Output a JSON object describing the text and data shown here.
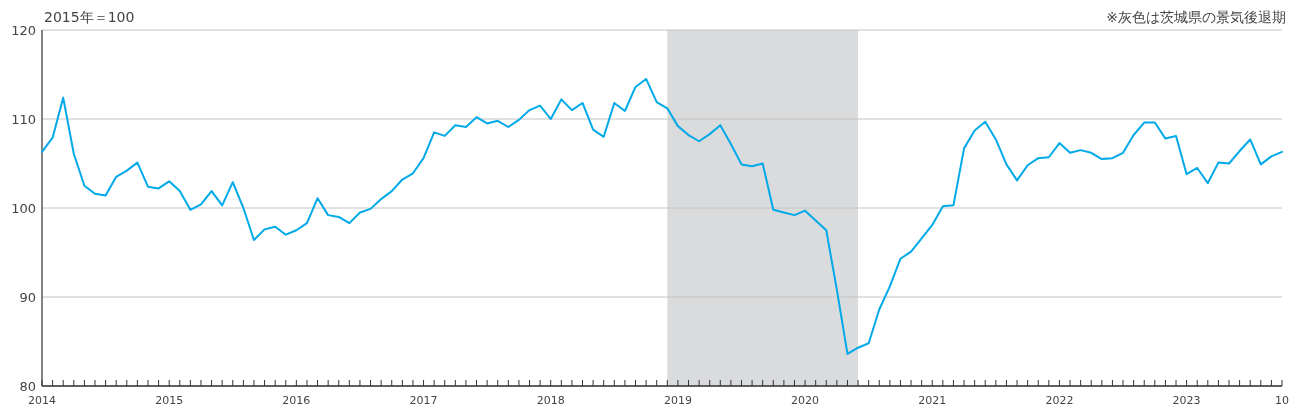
{
  "chart_data": {
    "type": "line",
    "ylabel": "2015年＝100",
    "annotations": [
      "※灰色は茨城県の景気後退期"
    ],
    "x": [
      "2014-01",
      "2014-02",
      "2014-03",
      "2014-04",
      "2014-05",
      "2014-06",
      "2014-07",
      "2014-08",
      "2014-09",
      "2014-10",
      "2014-11",
      "2014-12",
      "2015-01",
      "2015-02",
      "2015-03",
      "2015-04",
      "2015-05",
      "2015-06",
      "2015-07",
      "2015-08",
      "2015-09",
      "2015-10",
      "2015-11",
      "2015-12",
      "2016-01",
      "2016-02",
      "2016-03",
      "2016-04",
      "2016-05",
      "2016-06",
      "2016-07",
      "2016-08",
      "2016-09",
      "2016-10",
      "2016-11",
      "2016-12",
      "2017-01",
      "2017-02",
      "2017-03",
      "2017-04",
      "2017-05",
      "2017-06",
      "2017-07",
      "2017-08",
      "2017-09",
      "2017-10",
      "2017-11",
      "2017-12",
      "2018-01",
      "2018-02",
      "2018-03",
      "2018-04",
      "2018-05",
      "2018-06",
      "2018-07",
      "2018-08",
      "2018-09",
      "2018-10",
      "2018-11",
      "2018-12",
      "2019-01",
      "2019-02",
      "2019-03",
      "2019-04",
      "2019-05",
      "2019-06",
      "2019-07",
      "2019-08",
      "2019-09",
      "2019-10",
      "2019-11",
      "2019-12",
      "2020-01",
      "2020-02",
      "2020-03",
      "2020-04",
      "2020-05",
      "2020-06",
      "2020-07",
      "2020-08",
      "2020-09",
      "2020-10",
      "2020-11",
      "2020-12",
      "2021-01",
      "2021-02",
      "2021-03",
      "2021-04",
      "2021-05",
      "2021-06",
      "2021-07",
      "2021-08",
      "2021-09",
      "2021-10",
      "2021-11",
      "2021-12",
      "2022-01",
      "2022-02",
      "2022-03",
      "2022-04",
      "2022-05",
      "2022-06",
      "2022-07",
      "2022-08",
      "2022-09",
      "2022-10",
      "2022-11",
      "2022-12",
      "2023-01",
      "2023-02",
      "2023-03",
      "2023-04",
      "2023-05",
      "2023-06",
      "2023-07",
      "2023-08",
      "2023-09",
      "2023-10"
    ],
    "series": [
      {
        "color": "#00a9e8",
        "values": [
          106.3,
          107.9,
          112.4,
          106.1,
          102.5,
          101.6,
          101.4,
          103.5,
          104.2,
          105.1,
          102.4,
          102.2,
          103.0,
          101.9,
          99.8,
          100.4,
          101.9,
          100.3,
          102.9,
          100.0,
          96.4,
          97.6,
          97.9,
          97.0,
          97.5,
          98.3,
          101.1,
          99.2,
          99.0,
          98.3,
          99.5,
          99.9,
          101.0,
          101.9,
          103.2,
          103.9,
          105.6,
          108.5,
          108.1,
          109.3,
          109.1,
          110.2,
          109.5,
          109.8,
          109.1,
          109.9,
          111.0,
          111.5,
          110.0,
          112.2,
          111.0,
          111.8,
          108.8,
          108.0,
          111.8,
          110.9,
          113.6,
          114.5,
          111.9,
          111.2,
          109.2,
          108.2,
          107.5,
          108.3,
          109.3,
          107.2,
          104.9,
          104.7,
          105.0,
          99.8,
          99.5,
          99.2,
          99.7,
          98.6,
          97.5,
          90.8,
          83.6,
          84.3,
          84.8,
          88.6,
          91.2,
          94.3,
          95.1,
          96.6,
          98.1,
          100.2,
          100.3,
          106.7,
          108.7,
          109.7,
          107.7,
          104.9,
          103.1,
          104.8,
          105.6,
          105.7,
          107.3,
          106.2,
          106.5,
          106.2,
          105.5,
          105.6,
          106.2,
          108.2,
          109.6,
          109.6,
          107.8,
          108.1,
          103.8,
          104.5,
          102.8,
          105.1,
          105.0,
          106.4,
          107.7,
          104.9,
          105.8,
          106.3
        ]
      }
    ],
    "xlim": [
      "2014-01",
      "2023-10"
    ],
    "ylim": [
      80,
      120
    ],
    "yticks": [
      80,
      90,
      100,
      110,
      120
    ],
    "xticks": [
      {
        "value": "2014-01",
        "label": "2014"
      },
      {
        "value": "2014-02",
        "label": null
      },
      {
        "value": "2014-03",
        "label": null
      },
      {
        "value": "2014-04",
        "label": null
      },
      {
        "value": "2014-05",
        "label": null
      },
      {
        "value": "2014-06",
        "label": null
      },
      {
        "value": "2014-07",
        "label": null
      },
      {
        "value": "2014-08",
        "label": null
      },
      {
        "value": "2014-09",
        "label": null
      },
      {
        "value": "2014-10",
        "label": null
      },
      {
        "value": "2014-11",
        "label": null
      },
      {
        "value": "2014-12",
        "label": null
      },
      {
        "value": "2015-01",
        "label": "2015"
      },
      {
        "value": "2015-02",
        "label": null
      },
      {
        "value": "2015-03",
        "label": null
      },
      {
        "value": "2015-04",
        "label": null
      },
      {
        "value": "2015-05",
        "label": null
      },
      {
        "value": "2015-06",
        "label": null
      },
      {
        "value": "2015-07",
        "label": null
      },
      {
        "value": "2015-08",
        "label": null
      },
      {
        "value": "2015-09",
        "label": null
      },
      {
        "value": "2015-10",
        "label": null
      },
      {
        "value": "2015-11",
        "label": null
      },
      {
        "value": "2015-12",
        "label": null
      },
      {
        "value": "2016-01",
        "label": "2016"
      },
      {
        "value": "2016-02",
        "label": null
      },
      {
        "value": "2016-03",
        "label": null
      },
      {
        "value": "2016-04",
        "label": null
      },
      {
        "value": "2016-05",
        "label": null
      },
      {
        "value": "2016-06",
        "label": null
      },
      {
        "value": "2016-07",
        "label": null
      },
      {
        "value": "2016-08",
        "label": null
      },
      {
        "value": "2016-09",
        "label": null
      },
      {
        "value": "2016-10",
        "label": null
      },
      {
        "value": "2016-11",
        "label": null
      },
      {
        "value": "2016-12",
        "label": null
      },
      {
        "value": "2017-01",
        "label": "2017"
      },
      {
        "value": "2017-02",
        "label": null
      },
      {
        "value": "2017-03",
        "label": null
      },
      {
        "value": "2017-04",
        "label": null
      },
      {
        "value": "2017-05",
        "label": null
      },
      {
        "value": "2017-06",
        "label": null
      },
      {
        "value": "2017-07",
        "label": null
      },
      {
        "value": "2017-08",
        "label": null
      },
      {
        "value": "2017-09",
        "label": null
      },
      {
        "value": "2017-10",
        "label": null
      },
      {
        "value": "2017-11",
        "label": null
      },
      {
        "value": "2017-12",
        "label": null
      },
      {
        "value": "2018-01",
        "label": "2018"
      },
      {
        "value": "2018-02",
        "label": null
      },
      {
        "value": "2018-03",
        "label": null
      },
      {
        "value": "2018-04",
        "label": null
      },
      {
        "value": "2018-05",
        "label": null
      },
      {
        "value": "2018-06",
        "label": null
      },
      {
        "value": "2018-07",
        "label": null
      },
      {
        "value": "2018-08",
        "label": null
      },
      {
        "value": "2018-09",
        "label": null
      },
      {
        "value": "2018-10",
        "label": null
      },
      {
        "value": "2018-11",
        "label": null
      },
      {
        "value": "2018-12",
        "label": null
      },
      {
        "value": "2019-01",
        "label": "2019"
      },
      {
        "value": "2019-02",
        "label": null
      },
      {
        "value": "2019-03",
        "label": null
      },
      {
        "value": "2019-04",
        "label": null
      },
      {
        "value": "2019-05",
        "label": null
      },
      {
        "value": "2019-06",
        "label": null
      },
      {
        "value": "2019-07",
        "label": null
      },
      {
        "value": "2019-08",
        "label": null
      },
      {
        "value": "2019-09",
        "label": null
      },
      {
        "value": "2019-10",
        "label": null
      },
      {
        "value": "2019-11",
        "label": null
      },
      {
        "value": "2019-12",
        "label": null
      },
      {
        "value": "2020-01",
        "label": "2020"
      },
      {
        "value": "2020-02",
        "label": null
      },
      {
        "value": "2020-03",
        "label": null
      },
      {
        "value": "2020-04",
        "label": null
      },
      {
        "value": "2020-05",
        "label": null
      },
      {
        "value": "2020-06",
        "label": null
      },
      {
        "value": "2020-07",
        "label": null
      },
      {
        "value": "2020-08",
        "label": null
      },
      {
        "value": "2020-09",
        "label": null
      },
      {
        "value": "2020-10",
        "label": null
      },
      {
        "value": "2020-11",
        "label": null
      },
      {
        "value": "2020-12",
        "label": null
      },
      {
        "value": "2021-01",
        "label": "2021"
      },
      {
        "value": "2021-02",
        "label": null
      },
      {
        "value": "2021-03",
        "label": null
      },
      {
        "value": "2021-04",
        "label": null
      },
      {
        "value": "2021-05",
        "label": null
      },
      {
        "value": "2021-06",
        "label": null
      },
      {
        "value": "2021-07",
        "label": null
      },
      {
        "value": "2021-08",
        "label": null
      },
      {
        "value": "2021-09",
        "label": null
      },
      {
        "value": "2021-10",
        "label": null
      },
      {
        "value": "2021-11",
        "label": null
      },
      {
        "value": "2021-12",
        "label": null
      },
      {
        "value": "2022-01",
        "label": "2022"
      },
      {
        "value": "2022-02",
        "label": null
      },
      {
        "value": "2022-03",
        "label": null
      },
      {
        "value": "2022-04",
        "label": null
      },
      {
        "value": "2022-05",
        "label": null
      },
      {
        "value": "2022-06",
        "label": null
      },
      {
        "value": "2022-07",
        "label": null
      },
      {
        "value": "2022-08",
        "label": null
      },
      {
        "value": "2022-09",
        "label": null
      },
      {
        "value": "2022-10",
        "label": null
      },
      {
        "value": "2022-11",
        "label": null
      },
      {
        "value": "2022-12",
        "label": null
      },
      {
        "value": "2023-01",
        "label": "2023"
      },
      {
        "value": "2023-02",
        "label": null
      },
      {
        "value": "2023-03",
        "label": null
      },
      {
        "value": "2023-04",
        "label": null
      },
      {
        "value": "2023-05",
        "label": null
      },
      {
        "value": "2023-06",
        "label": null
      },
      {
        "value": "2023-07",
        "label": null
      },
      {
        "value": "2023-08",
        "label": null
      },
      {
        "value": "2023-09",
        "label": null
      },
      {
        "value": "2023-10",
        "label": "10"
      }
    ],
    "grid": "y",
    "bands": [
      {
        "axis": "x",
        "from": "2018-12",
        "to": "2020-06",
        "color": "#dadbdd"
      }
    ]
  }
}
